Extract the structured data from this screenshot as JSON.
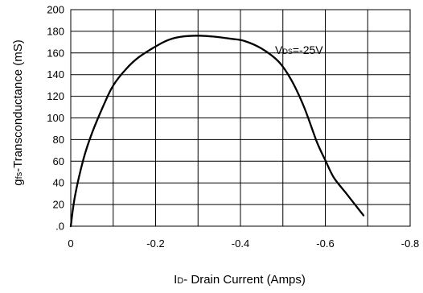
{
  "chart_data": {
    "type": "line",
    "xlabel": {
      "prefix": "I",
      "sub": "D",
      "rest": "- Drain Current (Amps)"
    },
    "ylabel": {
      "prefix": "g",
      "sub": "fs",
      "rest": "-Transconductance (mS)"
    },
    "xlim": [
      0,
      -0.8
    ],
    "ylim": [
      0,
      200
    ],
    "x_ticks": [
      0,
      -0.2,
      -0.4,
      -0.6,
      -0.8
    ],
    "x_tick_labels": [
      "0",
      "-0.2",
      "-0.4",
      "-0.6",
      "-0.8"
    ],
    "y_ticks": [
      0,
      20,
      40,
      60,
      80,
      100,
      120,
      140,
      160,
      180,
      200
    ],
    "y_tick_labels": [
      ".0",
      "20",
      "40",
      "60",
      "80",
      "100",
      "120",
      "140",
      "160",
      "180",
      "200"
    ],
    "grid": true,
    "annotation": {
      "prefix": "V",
      "sub": "DS",
      "rest": "=-25V"
    },
    "series": [
      {
        "x": [
          0,
          -0.01,
          -0.03,
          -0.05,
          -0.08,
          -0.1,
          -0.13,
          -0.16,
          -0.2,
          -0.23,
          -0.26,
          -0.3,
          -0.34,
          -0.38,
          -0.41,
          -0.45,
          -0.49,
          -0.52,
          -0.55,
          -0.58,
          -0.6,
          -0.62,
          -0.65,
          -0.67,
          -0.69
        ],
        "y": [
          0,
          28,
          62,
          86,
          114,
          130,
          145,
          156,
          166,
          172,
          175,
          176,
          175,
          173,
          171,
          164,
          152,
          135,
          110,
          78,
          61,
          45,
          30,
          20,
          10
        ]
      }
    ]
  }
}
